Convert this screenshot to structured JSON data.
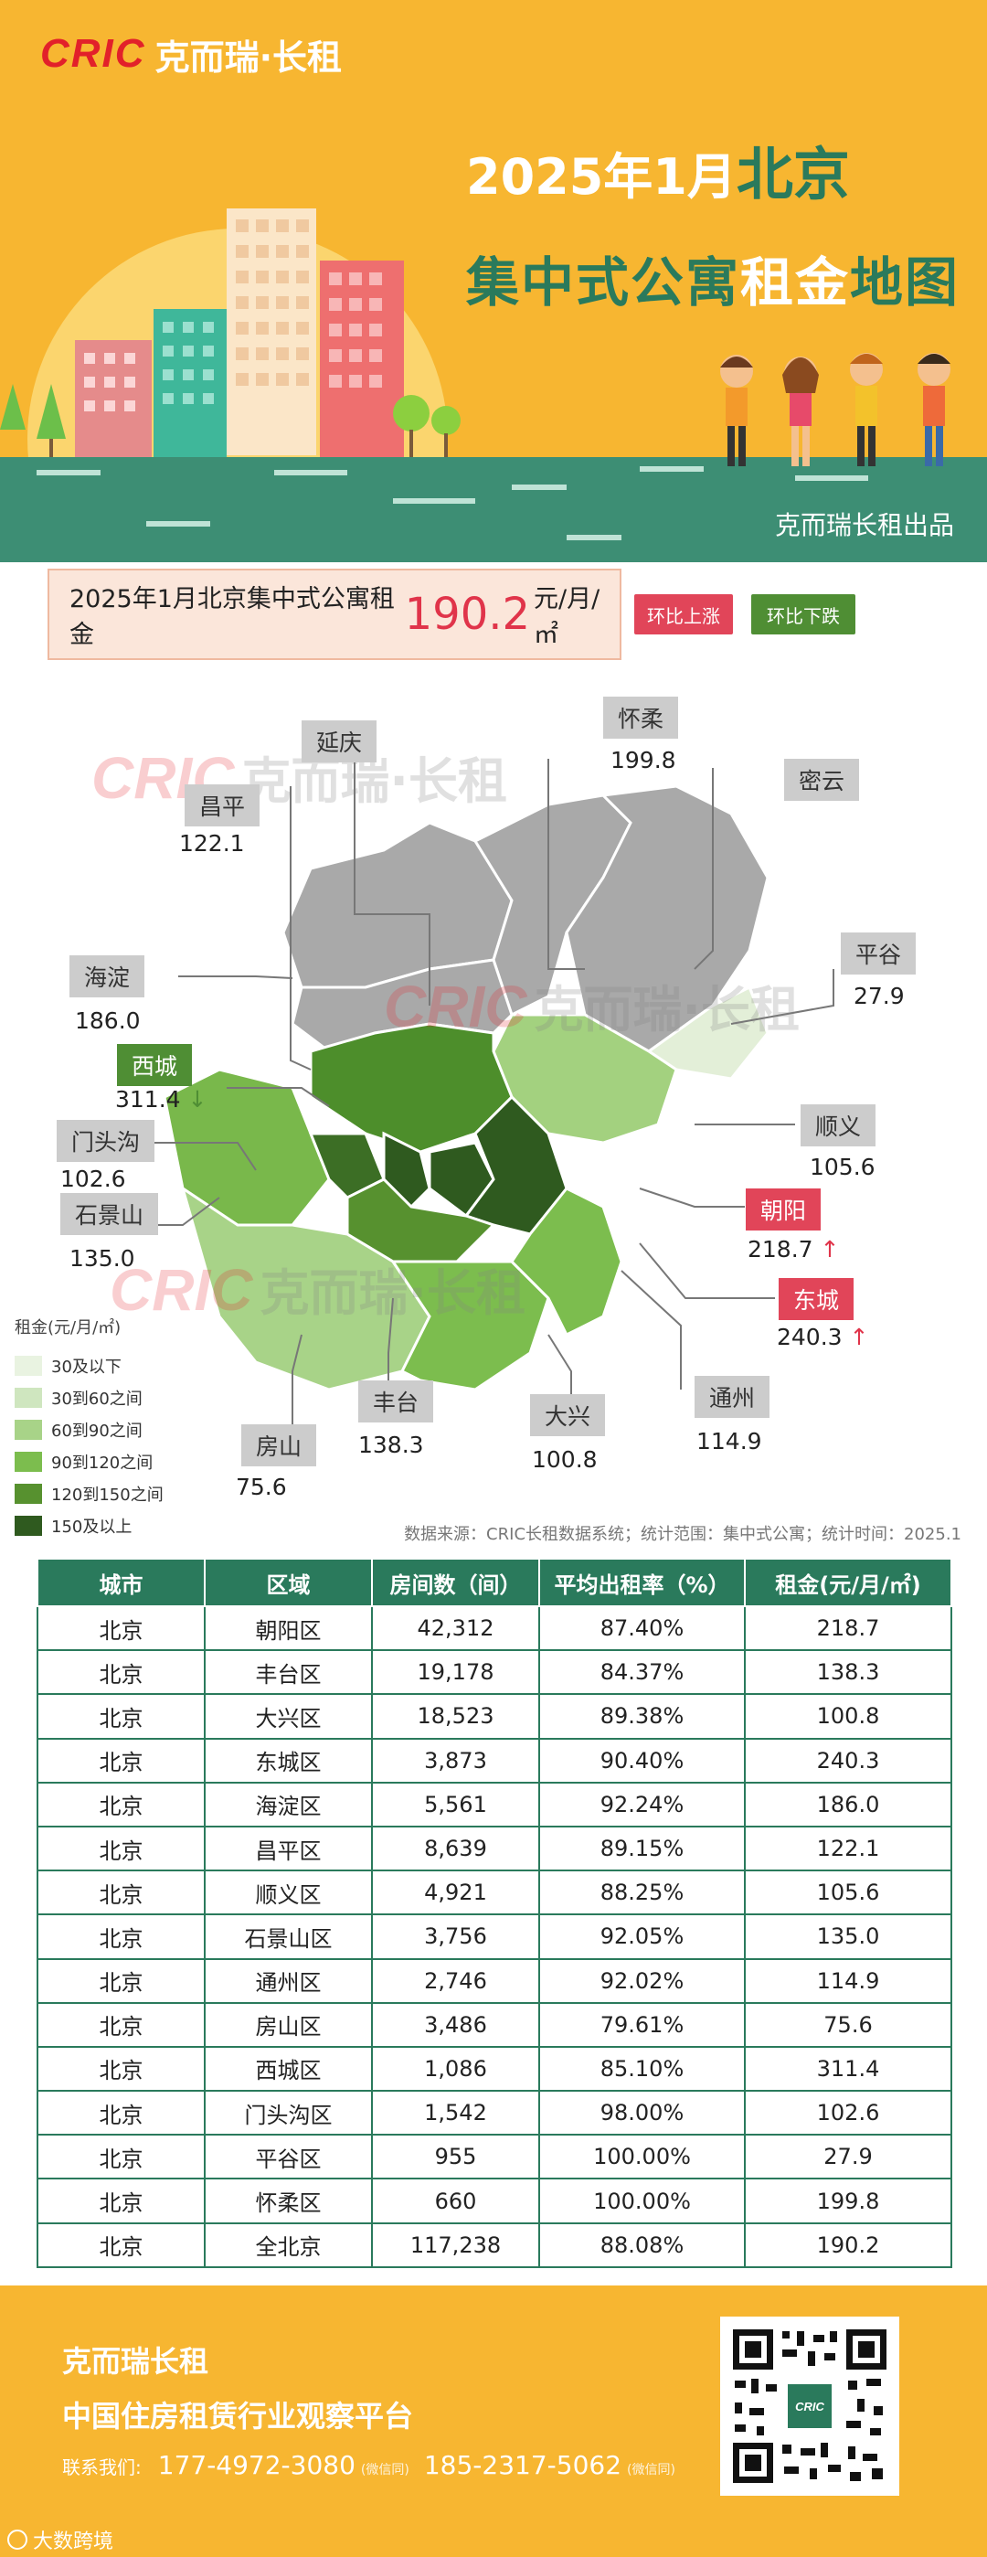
{
  "header": {
    "brand_latin": "CRIC",
    "brand_cn": "克而瑞·长租",
    "title_prefix": "2025年1月",
    "title_city": "北京",
    "title_line2a": "集中式公寓",
    "title_line2b": "租金",
    "title_line2c": "地图",
    "byline": "克而瑞长租出品"
  },
  "summary": {
    "prefix": "2025年1月北京集中式公寓租金",
    "value": "190.2",
    "unit": "元/月/㎡",
    "up_label": "环比上涨",
    "down_label": "环比下跌"
  },
  "map": {
    "watermark_latin": "CRIC",
    "watermark_cn": "克而瑞·长租",
    "districts": [
      {
        "name": "延庆",
        "value": "",
        "trend": "none"
      },
      {
        "name": "怀柔",
        "value": "199.8",
        "trend": "none"
      },
      {
        "name": "昌平",
        "value": "122.1",
        "trend": "none"
      },
      {
        "name": "密云",
        "value": "",
        "trend": "none"
      },
      {
        "name": "海淀",
        "value": "186.0",
        "trend": "none"
      },
      {
        "name": "平谷",
        "value": "27.9",
        "trend": "none"
      },
      {
        "name": "西城",
        "value": "311.4",
        "trend": "down",
        "arrow": "↓"
      },
      {
        "name": "门头沟",
        "value": "102.6",
        "trend": "none"
      },
      {
        "name": "顺义",
        "value": "105.6",
        "trend": "none"
      },
      {
        "name": "石景山",
        "value": "135.0",
        "trend": "none"
      },
      {
        "name": "朝阳",
        "value": "218.7",
        "trend": "up",
        "arrow": "↑"
      },
      {
        "name": "东城",
        "value": "240.3",
        "trend": "up",
        "arrow": "↑"
      },
      {
        "name": "丰台",
        "value": "138.3",
        "trend": "none"
      },
      {
        "name": "房山",
        "value": "75.6",
        "trend": "none"
      },
      {
        "name": "大兴",
        "value": "100.8",
        "trend": "none"
      },
      {
        "name": "通州",
        "value": "114.9",
        "trend": "none"
      }
    ],
    "legend": {
      "title": "租金(元/月/㎡)",
      "items": [
        {
          "label": "30及以下",
          "color": "#e9f3e1"
        },
        {
          "label": "30到60之间",
          "color": "#cfe6bf"
        },
        {
          "label": "60到90之间",
          "color": "#a8d388"
        },
        {
          "label": "90到120之间",
          "color": "#7cbd4e"
        },
        {
          "label": "120到150之间",
          "color": "#57912f"
        },
        {
          "label": "150及以上",
          "color": "#2f5a1f"
        }
      ]
    },
    "source": "数据来源：CRIC长租数据系统；统计范围：集中式公寓；统计时间：2025.1"
  },
  "table": {
    "headers": [
      "城市",
      "区域",
      "房间数（间）",
      "平均出租率（%）",
      "租金(元/月/㎡)"
    ],
    "rows": [
      [
        "北京",
        "朝阳区",
        "42,312",
        "87.40%",
        "218.7"
      ],
      [
        "北京",
        "丰台区",
        "19,178",
        "84.37%",
        "138.3"
      ],
      [
        "北京",
        "大兴区",
        "18,523",
        "89.38%",
        "100.8"
      ],
      [
        "北京",
        "东城区",
        "3,873",
        "90.40%",
        "240.3"
      ],
      [
        "北京",
        "海淀区",
        "5,561",
        "92.24%",
        "186.0"
      ],
      [
        "北京",
        "昌平区",
        "8,639",
        "89.15%",
        "122.1"
      ],
      [
        "北京",
        "顺义区",
        "4,921",
        "88.25%",
        "105.6"
      ],
      [
        "北京",
        "石景山区",
        "3,756",
        "92.05%",
        "135.0"
      ],
      [
        "北京",
        "通州区",
        "2,746",
        "92.02%",
        "114.9"
      ],
      [
        "北京",
        "房山区",
        "3,486",
        "79.61%",
        "75.6"
      ],
      [
        "北京",
        "西城区",
        "1,086",
        "85.10%",
        "311.4"
      ],
      [
        "北京",
        "门头沟区",
        "1,542",
        "98.00%",
        "102.6"
      ],
      [
        "北京",
        "平谷区",
        "955",
        "100.00%",
        "27.9"
      ],
      [
        "北京",
        "怀柔区",
        "660",
        "100.00%",
        "199.8"
      ],
      [
        "北京",
        "全北京",
        "117,238",
        "88.08%",
        "190.2"
      ]
    ]
  },
  "footer": {
    "line1": "克而瑞长租",
    "line2": "中国住房租赁行业观察平台",
    "contact_prefix": "联系我们:",
    "phone1": "177-4972-3080",
    "phone1_note": "(微信同)",
    "phone2": "185-2317-5062",
    "phone2_note": "(微信同)",
    "watermark": "大数跨境"
  },
  "colors": {
    "header_bg": "#f7b631",
    "brand_green": "#2a7a5c",
    "up_red": "#e14559",
    "down_green": "#4f8e34",
    "grey_district": "#a8a8a8"
  }
}
